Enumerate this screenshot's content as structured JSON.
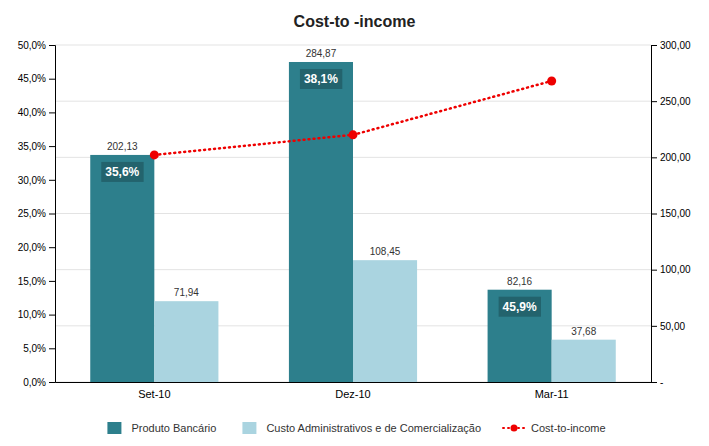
{
  "chart_data": {
    "type": "bar",
    "title": "Cost-to -income",
    "categories": [
      "Set-10",
      "Dez-10",
      "Mar-11"
    ],
    "series": [
      {
        "name": "Produto Bancário",
        "color": "#2d7f8c",
        "axis": "y2",
        "values": [
          202.13,
          284.87,
          82.16
        ],
        "value_labels": [
          "202,13",
          "284,87",
          "82,16"
        ]
      },
      {
        "name": "Custo Administrativos e de Comercialização",
        "color": "#aad4e0",
        "axis": "y2",
        "values": [
          71.94,
          108.45,
          37.68
        ],
        "value_labels": [
          "71,94",
          "108,45",
          "37,68"
        ]
      },
      {
        "name": "Cost-to-income",
        "type": "line",
        "color": "#ee0000",
        "axis": "y2",
        "marker": "circle",
        "line_style": "dotted",
        "values": [
          202.13,
          220.0,
          268.0
        ]
      }
    ],
    "annotations": [
      {
        "x": "Set-10",
        "text": "35,6%"
      },
      {
        "x": "Dez-10",
        "text": "38,1%"
      },
      {
        "x": "Mar-11",
        "text": "45,9%"
      }
    ],
    "ylim": [
      0,
      50
    ],
    "yticks": [
      {
        "value": 0,
        "label": "0,0%"
      },
      {
        "value": 5,
        "label": "5,0%"
      },
      {
        "value": 10,
        "label": "10,0%"
      },
      {
        "value": 15,
        "label": "15,0%"
      },
      {
        "value": 20,
        "label": "20,0%"
      },
      {
        "value": 25,
        "label": "25,0%"
      },
      {
        "value": 30,
        "label": "30,0%"
      },
      {
        "value": 35,
        "label": "35,0%"
      },
      {
        "value": 40,
        "label": "40,0%"
      },
      {
        "value": 45,
        "label": "45,0%"
      },
      {
        "value": 50,
        "label": "50,0%"
      }
    ],
    "y2lim": [
      0,
      300
    ],
    "y2ticks": [
      {
        "value": 0,
        "label": "-"
      },
      {
        "value": 50,
        "label": "50,00"
      },
      {
        "value": 100,
        "label": "100,00"
      },
      {
        "value": 150,
        "label": "150,00"
      },
      {
        "value": 200,
        "label": "200,00"
      },
      {
        "value": 250,
        "label": "250,00"
      },
      {
        "value": 300,
        "label": "300,00"
      }
    ],
    "grid": true,
    "legend": "bottom",
    "data_labels": true
  }
}
